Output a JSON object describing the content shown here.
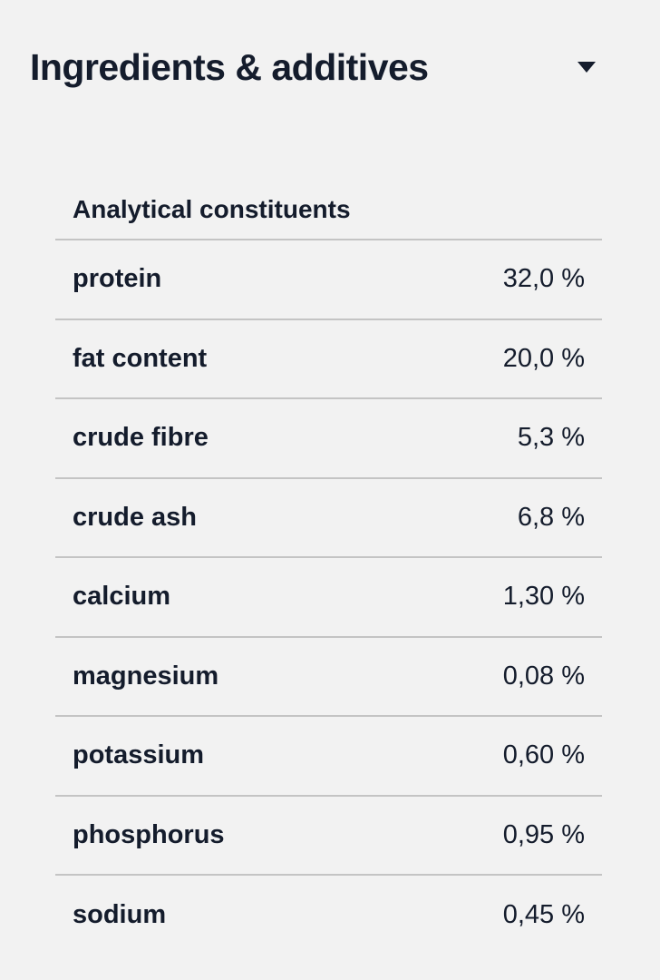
{
  "section": {
    "title": "Ingredients & additives",
    "toggle_icon": "caret-down-icon"
  },
  "table": {
    "header": "Analytical constituents",
    "rows": [
      {
        "label": "protein",
        "value": "32,0 %"
      },
      {
        "label": "fat content",
        "value": "20,0 %"
      },
      {
        "label": "crude fibre",
        "value": "5,3 %"
      },
      {
        "label": "crude ash",
        "value": "6,8 %"
      },
      {
        "label": "calcium",
        "value": "1,30 %"
      },
      {
        "label": "magnesium",
        "value": "0,08 %"
      },
      {
        "label": "potassium",
        "value": "0,60 %"
      },
      {
        "label": "phosphorus",
        "value": "0,95 %"
      },
      {
        "label": "sodium",
        "value": "0,45 %"
      }
    ]
  }
}
